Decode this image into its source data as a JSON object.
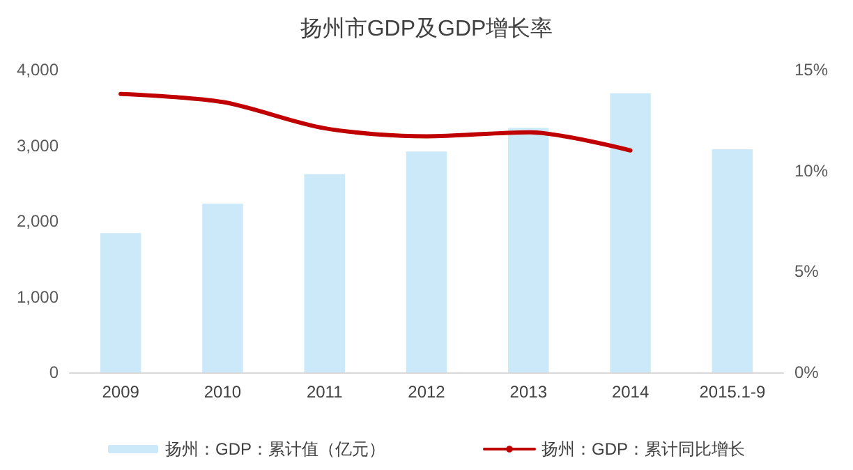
{
  "chart_data": {
    "type": "bar",
    "title": "扬州市GDP及GDP增长率",
    "categories": [
      "2009",
      "2010",
      "2011",
      "2012",
      "2013",
      "2014",
      "2015.1-9"
    ],
    "series": [
      {
        "name": "扬州：GDP：累计值（亿元）",
        "color": "#cce9fa",
        "values": [
          1840,
          2230,
          2620,
          2920,
          3230,
          3690,
          2950
        ]
      },
      {
        "name": "扬州：GDP：累计同比增长",
        "color": "#c00000",
        "type": "line",
        "axis": "y2",
        "values": [
          13.8,
          13.4,
          12.1,
          11.7,
          11.9,
          11.0,
          null
        ]
      }
    ],
    "ylim": [
      0,
      4000
    ],
    "yticks": [
      {
        "value": 0,
        "label": "0"
      },
      {
        "value": 1000,
        "label": "1,000"
      },
      {
        "value": 2000,
        "label": "2,000"
      },
      {
        "value": 3000,
        "label": "3,000"
      },
      {
        "value": 4000,
        "label": "4,000"
      }
    ],
    "y2lim": [
      0,
      15
    ],
    "y2ticks": [
      {
        "value": 0,
        "label": "0%"
      },
      {
        "value": 5,
        "label": "5%"
      },
      {
        "value": 10,
        "label": "10%"
      },
      {
        "value": 15,
        "label": "15%"
      }
    ],
    "grid": false,
    "legend": "bottom",
    "marker": "none"
  }
}
